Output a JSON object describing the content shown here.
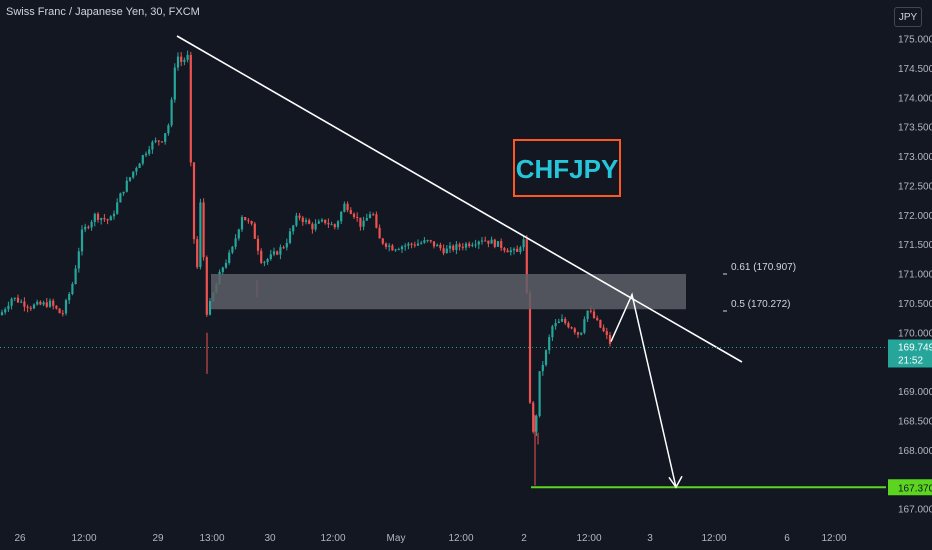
{
  "header": {
    "symbol_title": "Swiss Franc / Japanese Yen, 30, FXCM",
    "currency": "JPY"
  },
  "annotation": {
    "label": "CHFJPY",
    "text_color": "#26c6da",
    "border_color": "#ff5722"
  },
  "fib_levels": [
    {
      "label": "0.61 (170.907)",
      "value": 170.907
    },
    {
      "label": "0.5 (170.272)",
      "value": 170.272
    }
  ],
  "price_tags": {
    "current_price": "169.749",
    "countdown": "21:52",
    "target_price": "167.370"
  },
  "colors": {
    "background": "#131722",
    "up": "#26a69a",
    "down": "#ef5350",
    "zone": "#5d5f66",
    "target_line": "#5bd520",
    "trendline": "#ffffff",
    "price_tag_bg": "#26a69a",
    "target_tag_bg": "#5bd520"
  },
  "chart_data": {
    "type": "candlestick",
    "title": "Swiss Franc / Japanese Yen, 30, FXCM",
    "ylim": [
      166.8,
      175.3
    ],
    "y_ticks": [
      "175.000",
      "174.500",
      "174.000",
      "173.500",
      "173.000",
      "172.500",
      "172.000",
      "171.500",
      "171.000",
      "170.500",
      "170.000",
      "169.500",
      "169.000",
      "168.500",
      "168.000",
      "167.500",
      "167.000"
    ],
    "x_ticks": [
      "26",
      "12:00",
      "29",
      "13:00",
      "30",
      "12:00",
      "May",
      "12:00",
      "2",
      "12:00",
      "3",
      "12:00",
      "6",
      "12:00"
    ],
    "trendline": {
      "start_price": 175.0,
      "end_price": 169.5
    },
    "resistance_zone": {
      "top": 171.0,
      "bottom": 170.4
    },
    "projection_path": [
      169.85,
      170.65,
      167.37
    ],
    "current_price": 169.749,
    "target": 167.37,
    "grid": false,
    "legend": "none"
  }
}
